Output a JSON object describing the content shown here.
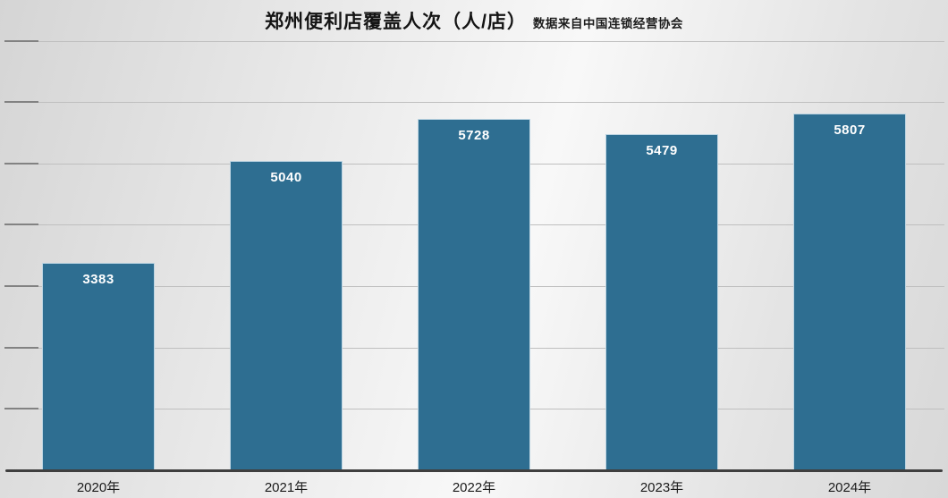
{
  "chart_data": {
    "type": "bar",
    "title": "郑州便利店覆盖人次（人/店）",
    "subtitle": "数据来自中国连锁经营协会",
    "categories": [
      "2020年",
      "2021年",
      "2022年",
      "2023年",
      "2024年"
    ],
    "values": [
      3383,
      5040,
      5728,
      5479,
      5807
    ],
    "value_labels": [
      "3383",
      "5040",
      "5728",
      "5479",
      "5807"
    ],
    "xlabel": "",
    "ylabel": "",
    "ylim": [
      0,
      7300
    ],
    "grid": true,
    "gridline_step": 1000,
    "legend": false,
    "bar_color": "#2e6e91",
    "bar_border_color": "#bcd4e2",
    "value_label_color": "#ffffff",
    "axis_color": "#3f3f3f",
    "gridline_color": "#bfbfbf",
    "tick_color": "#828282",
    "title_color": "#141414",
    "xtick_label_color": "#1b1b1b",
    "background_color": "#e6e6e6"
  }
}
